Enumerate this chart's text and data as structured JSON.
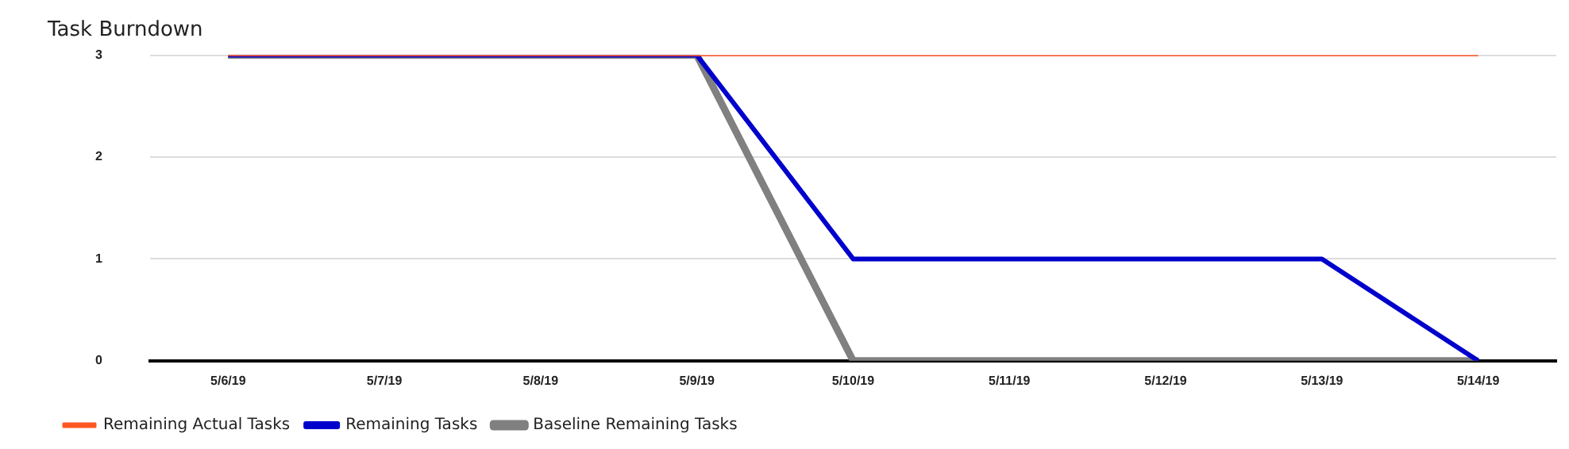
{
  "chart_data": {
    "type": "line",
    "title": "Task Burndown",
    "categories": [
      "5/6/19",
      "5/7/19",
      "5/8/19",
      "5/9/19",
      "5/10/19",
      "5/11/19",
      "5/12/19",
      "5/13/19",
      "5/14/19"
    ],
    "series": [
      {
        "name": "Baseline Remaining Tasks",
        "color": "#808080",
        "values": [
          3,
          3,
          3,
          3,
          0,
          0,
          0,
          0,
          0
        ]
      },
      {
        "name": "Remaining Tasks",
        "color": "#0000cc",
        "values": [
          3,
          3,
          3,
          3,
          1,
          1,
          1,
          1,
          0
        ]
      },
      {
        "name": "Remaining Actual Tasks",
        "color": "#ff5722",
        "values": [
          3,
          3,
          3,
          3,
          3,
          3,
          3,
          3,
          3
        ]
      }
    ],
    "ylim": [
      0,
      3
    ],
    "yticks": [
      0,
      1,
      2,
      3
    ],
    "grid": "y",
    "legend": "bottom left",
    "marker": "none",
    "line_style": "solid"
  }
}
